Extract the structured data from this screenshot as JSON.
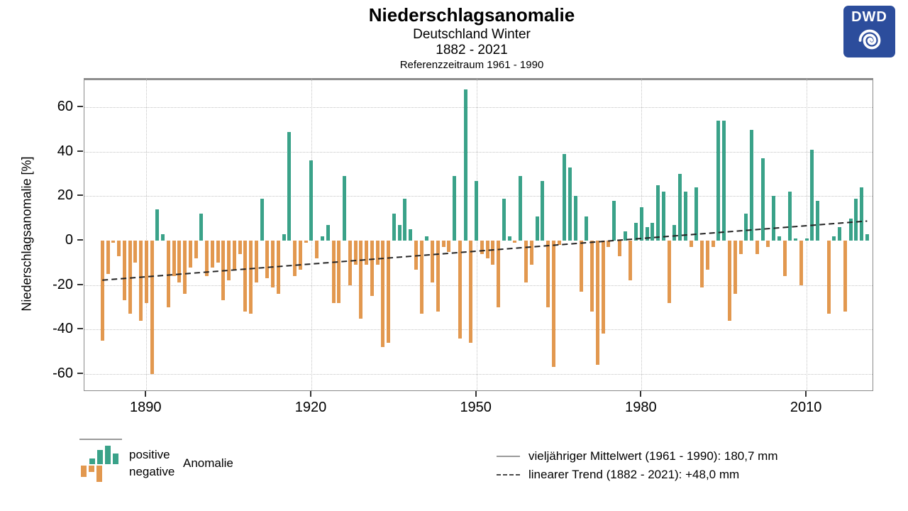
{
  "header": {
    "title": "Niederschlagsanomalie",
    "subtitle_region": "Deutschland Winter",
    "subtitle_period": "1882 - 2021",
    "subtitle_reference": "Referenzzeitraum 1961 - 1990",
    "logo_text": "DWD",
    "logo_color": "#2c4d9c"
  },
  "chart_data": {
    "type": "bar",
    "title": "Niederschlagsanomalie",
    "xlabel": "",
    "ylabel": "Niederschlagsanomalie [%]",
    "ylim": [
      -68,
      73
    ],
    "yticks": [
      60,
      40,
      20,
      0,
      -20,
      -40,
      -60
    ],
    "xticks": [
      1890,
      1920,
      1950,
      1980,
      2010
    ],
    "grid": true,
    "legend_position": "bottom",
    "positive_color": "#3aa289",
    "negative_color": "#e2984f",
    "year_start": 1882,
    "year_end": 2021,
    "years": [
      1882,
      1883,
      1884,
      1885,
      1886,
      1887,
      1888,
      1889,
      1890,
      1891,
      1892,
      1893,
      1894,
      1895,
      1896,
      1897,
      1898,
      1899,
      1900,
      1901,
      1902,
      1903,
      1904,
      1905,
      1906,
      1907,
      1908,
      1909,
      1910,
      1911,
      1912,
      1913,
      1914,
      1915,
      1916,
      1917,
      1918,
      1919,
      1920,
      1921,
      1922,
      1923,
      1924,
      1925,
      1926,
      1927,
      1928,
      1929,
      1930,
      1931,
      1932,
      1933,
      1934,
      1935,
      1936,
      1937,
      1938,
      1939,
      1940,
      1941,
      1942,
      1943,
      1944,
      1945,
      1946,
      1947,
      1948,
      1949,
      1950,
      1951,
      1952,
      1953,
      1954,
      1955,
      1956,
      1957,
      1958,
      1959,
      1960,
      1961,
      1962,
      1963,
      1964,
      1965,
      1966,
      1967,
      1968,
      1969,
      1970,
      1971,
      1972,
      1973,
      1974,
      1975,
      1976,
      1977,
      1978,
      1979,
      1980,
      1981,
      1982,
      1983,
      1984,
      1985,
      1986,
      1987,
      1988,
      1989,
      1990,
      1991,
      1992,
      1993,
      1994,
      1995,
      1996,
      1997,
      1998,
      1999,
      2000,
      2001,
      2002,
      2003,
      2004,
      2005,
      2006,
      2007,
      2008,
      2009,
      2010,
      2011,
      2012,
      2013,
      2014,
      2015,
      2016,
      2017,
      2018,
      2019,
      2020,
      2021
    ],
    "values": [
      -45,
      -15,
      -1,
      -7,
      -27,
      -33,
      -10,
      -36,
      -28,
      -60,
      14,
      3,
      -30,
      -16,
      -19,
      -24,
      -12,
      -8,
      12,
      -16,
      -12,
      -10,
      -27,
      -18,
      -13,
      -6,
      -32,
      -33,
      -19,
      19,
      -17,
      -21,
      -24,
      3,
      49,
      -16,
      -13,
      -1,
      36,
      -8,
      2,
      7,
      -28,
      -28,
      29,
      -20,
      -11,
      -35,
      -11,
      -25,
      -11,
      -48,
      -46,
      12,
      7,
      19,
      5,
      -13,
      -33,
      2,
      -19,
      -32,
      -3,
      -5,
      29,
      -44,
      68,
      -46,
      27,
      -6,
      -8,
      -11,
      -30,
      19,
      2,
      -1,
      29,
      -19,
      -11,
      11,
      27,
      -30,
      -57,
      -2,
      39,
      33,
      20,
      -23,
      11,
      -32,
      -56,
      -42,
      -3,
      18,
      -7,
      4,
      -18,
      8,
      15,
      6,
      8,
      25,
      22,
      -28,
      7,
      30,
      22,
      -3,
      24,
      -21,
      -13,
      -3,
      54,
      54,
      -36,
      -24,
      -6,
      12,
      50,
      -6,
      37,
      -3,
      20,
      2,
      -16,
      22,
      1,
      -20,
      1,
      41,
      18,
      0,
      -33,
      2,
      6,
      -32,
      10,
      19,
      24,
      3
    ],
    "mean_line": {
      "value": 0,
      "label": "vieljähriger Mittelwert (1961 - 1990): 180,7 mm"
    },
    "trend_line": {
      "start_year": 1882,
      "end_year": 2021,
      "start_value": -17.8,
      "end_value": 8.8,
      "label": "linearer Trend (1882 - 2021): +48,0 mm"
    }
  },
  "legend_left": {
    "positive_label": "positive",
    "negative_label": "negative",
    "anomaly_label": "Anomalie",
    "icon_green_heights": [
      8,
      20,
      26,
      15
    ],
    "icon_orange_heights": [
      16,
      9,
      23
    ]
  },
  "legend_right": {
    "mean_label": "vieljähriger Mittelwert (1961 - 1990): 180,7 mm",
    "trend_label": "linearer Trend (1882 - 2021): +48,0 mm"
  }
}
